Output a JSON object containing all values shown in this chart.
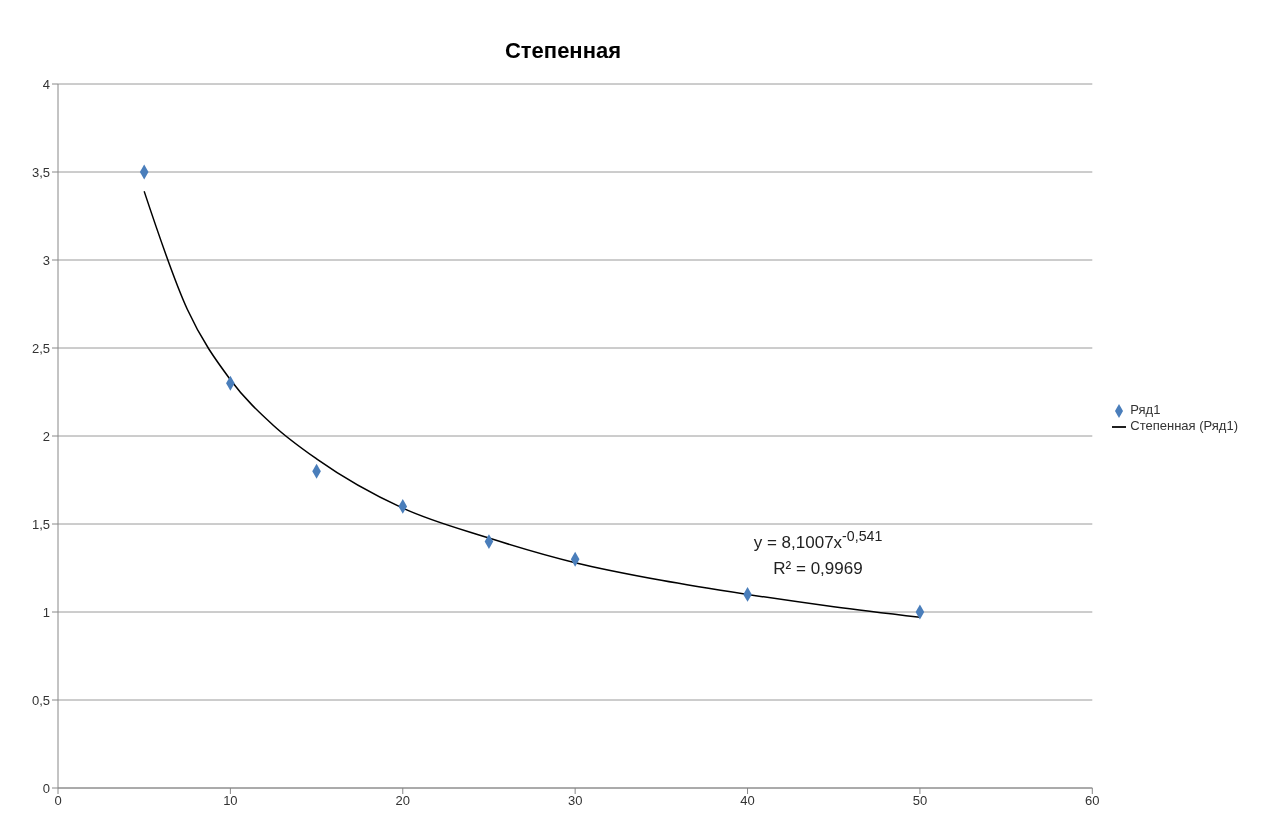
{
  "chart_data": {
    "type": "scatter",
    "title": "Степенная",
    "series": [
      {
        "name": "Ряд1",
        "marker": "diamond",
        "color": "#4a7ebb",
        "x": [
          5,
          10,
          15,
          20,
          25,
          30,
          40,
          50
        ],
        "values": [
          3.5,
          2.3,
          1.8,
          1.6,
          1.4,
          1.3,
          1.1,
          1.0
        ]
      },
      {
        "name": "Степенная (Ряд1)",
        "type": "line",
        "marker": "none",
        "line_style": "solid",
        "color": "#000000",
        "x": [
          5,
          7.5,
          10,
          12.5,
          15,
          20,
          25,
          30,
          35,
          40,
          45,
          50
        ],
        "values": [
          3.39,
          2.72,
          2.32,
          2.06,
          1.87,
          1.59,
          1.42,
          1.28,
          1.18,
          1.1,
          1.03,
          0.97
        ]
      }
    ],
    "xlim": [
      0,
      60
    ],
    "xticks": [
      0,
      10,
      20,
      30,
      40,
      50,
      60
    ],
    "ylim": [
      0,
      4
    ],
    "yticks": [
      0,
      {
        "value": 0.5,
        "label": "0,5"
      },
      1,
      {
        "value": 1.5,
        "label": "1,5"
      },
      2,
      {
        "value": 2.5,
        "label": "2,5"
      },
      3,
      {
        "value": 3.5,
        "label": "3,5"
      },
      4
    ],
    "grid": "y",
    "legend": "right",
    "annotations": [
      "y = 8,1007x$^{-0,541}$",
      "R² = 0,9969"
    ]
  }
}
